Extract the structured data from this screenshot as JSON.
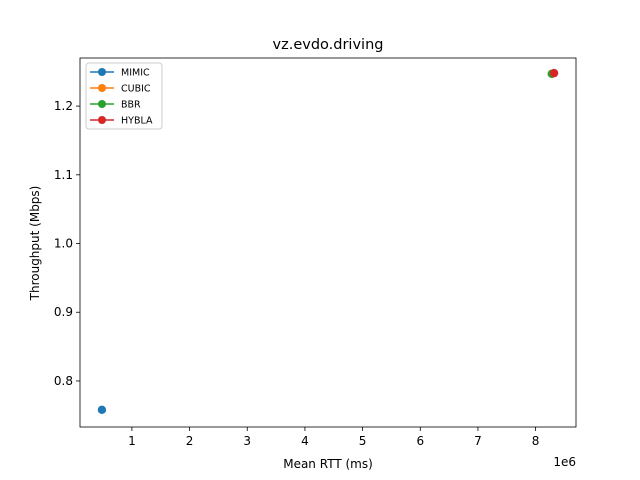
{
  "chart_data": {
    "type": "scatter",
    "title": "vz.evdo.driving",
    "xlabel": "Mean RTT (ms)",
    "ylabel": "Throughput (Mbps)",
    "x_offset_label": "1e6",
    "x_scale_factor": 1000000,
    "xlim": [
      0.1,
      8.7
    ],
    "ylim": [
      0.733,
      1.27
    ],
    "x_ticks": [
      1,
      2,
      3,
      4,
      5,
      6,
      7,
      8
    ],
    "x_tick_labels": [
      "1",
      "2",
      "3",
      "4",
      "5",
      "6",
      "7",
      "8"
    ],
    "y_ticks": [
      0.8,
      0.9,
      1.0,
      1.1,
      1.2
    ],
    "y_tick_labels": [
      "0.8",
      "0.9",
      "1.0",
      "1.1",
      "1.2"
    ],
    "grid": false,
    "legend_position": "top-left",
    "series": [
      {
        "name": "MIMIC",
        "color": "#1f77b4",
        "x": [
          0.48
        ],
        "y": [
          0.758
        ]
      },
      {
        "name": "CUBIC",
        "color": "#ff7f0e",
        "x": [
          8.28
        ],
        "y": [
          1.247
        ]
      },
      {
        "name": "BBR",
        "color": "#2ca02c",
        "x": [
          8.28
        ],
        "y": [
          1.247
        ]
      },
      {
        "name": "HYBLA",
        "color": "#d62728",
        "x": [
          8.32
        ],
        "y": [
          1.248
        ]
      }
    ]
  }
}
